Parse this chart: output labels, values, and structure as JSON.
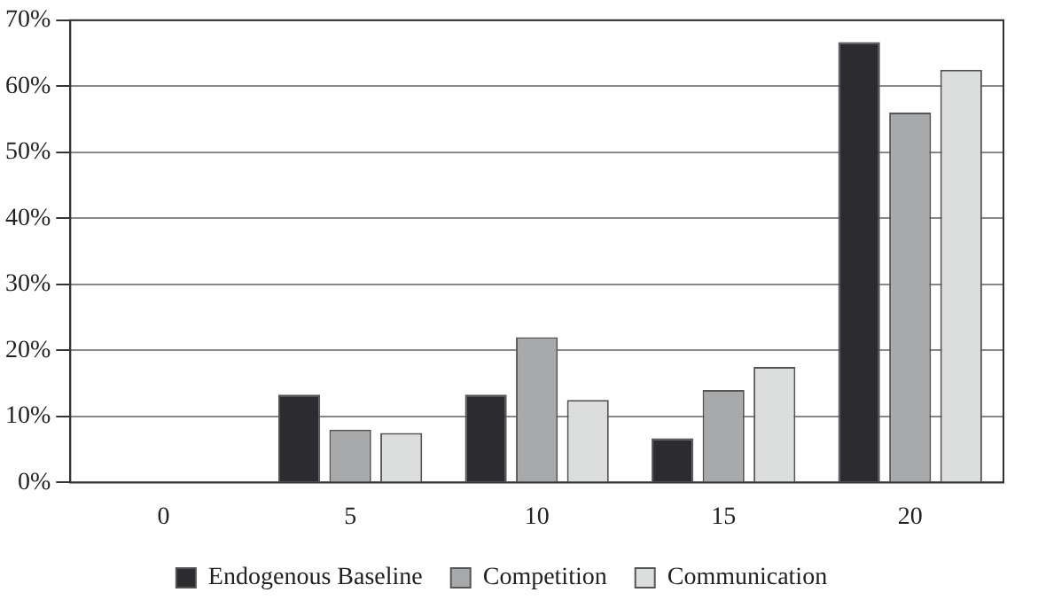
{
  "chart_data": {
    "type": "bar",
    "categories": [
      "0",
      "5",
      "10",
      "15",
      "20"
    ],
    "series": [
      {
        "name": "Endogenous Baseline",
        "color": "#2b2b30",
        "values": [
          0,
          13.3,
          13.3,
          6.7,
          66.7
        ]
      },
      {
        "name": "Competition",
        "color": "#a8a9ab",
        "values": [
          0,
          8,
          22,
          14,
          56
        ]
      },
      {
        "name": "Communication",
        "color": "#dcdddd",
        "values": [
          0,
          7.5,
          12.5,
          17.5,
          62.5
        ]
      }
    ],
    "ylim": [
      0,
      70
    ],
    "yticks": [
      {
        "value": 0,
        "label": "0%"
      },
      {
        "value": 10,
        "label": "10%"
      },
      {
        "value": 20,
        "label": "20%"
      },
      {
        "value": 30,
        "label": "30%"
      },
      {
        "value": 40,
        "label": "40%"
      },
      {
        "value": 50,
        "label": "50%"
      },
      {
        "value": 60,
        "label": "60%"
      },
      {
        "value": 70,
        "label": "70%"
      }
    ],
    "grid": "y",
    "legend": "bottom"
  }
}
